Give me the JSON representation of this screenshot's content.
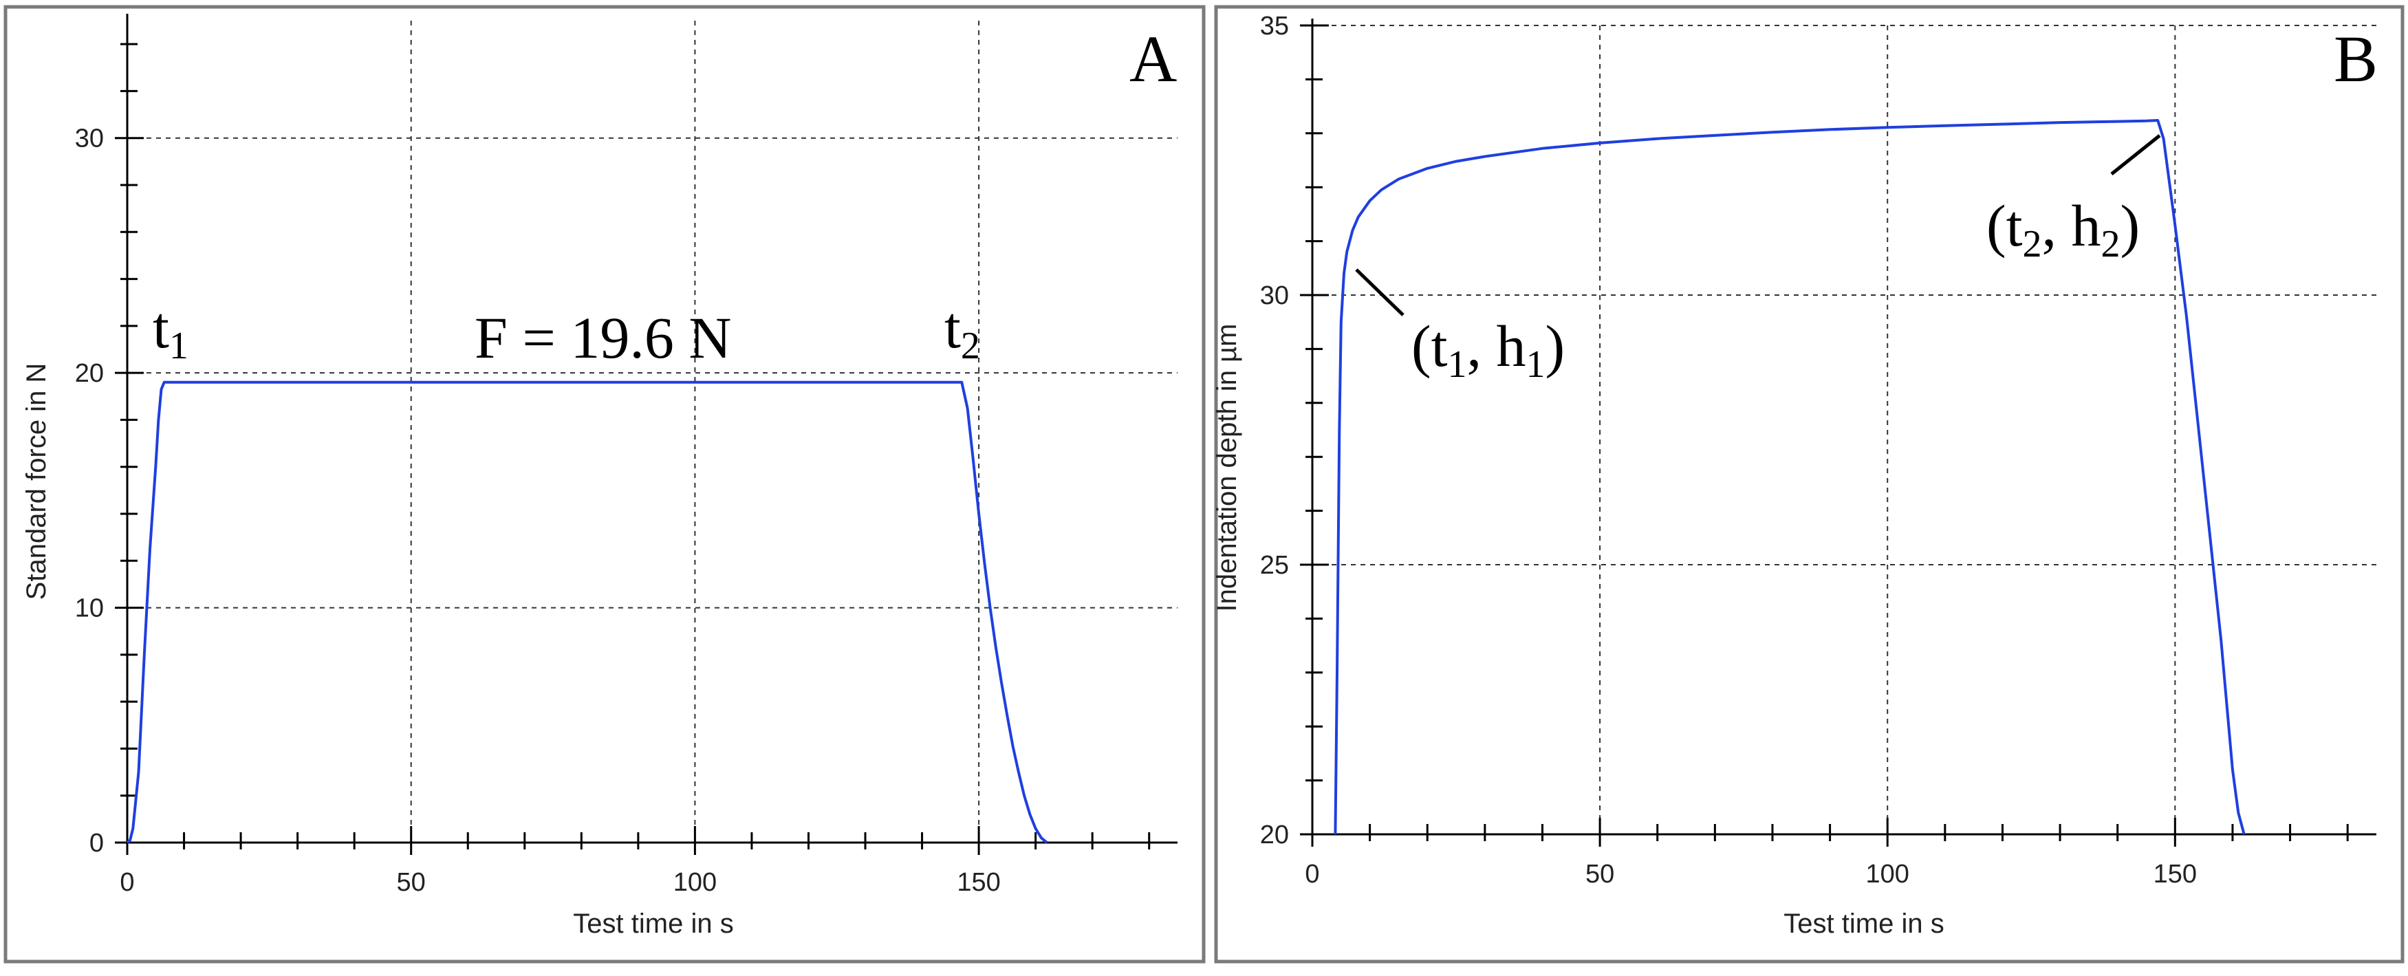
{
  "chart_data": [
    {
      "type": "line",
      "panel_label": "A",
      "xlabel": "Test time in s",
      "ylabel": "Standard force in N",
      "xlim": [
        0,
        185
      ],
      "ylim": [
        0,
        35
      ],
      "xticks": [
        0,
        50,
        100,
        150
      ],
      "yticks": [
        0,
        10,
        20,
        30
      ],
      "grid": true,
      "series": [
        {
          "color": "#1f3fe0",
          "x": [
            0,
            0.5,
            1,
            2,
            3,
            4,
            5,
            5.5,
            6,
            6.5,
            7,
            10,
            20,
            30,
            40,
            50,
            60,
            70,
            80,
            90,
            100,
            110,
            120,
            130,
            140,
            145,
            147,
            148,
            149,
            150,
            151,
            152,
            153,
            154,
            155,
            156,
            157,
            158,
            159,
            160,
            161,
            162
          ],
          "y": [
            0,
            0.1,
            0.6,
            3,
            8,
            12.5,
            16,
            18,
            19.3,
            19.6,
            19.6,
            19.6,
            19.6,
            19.6,
            19.6,
            19.6,
            19.6,
            19.6,
            19.6,
            19.6,
            19.6,
            19.6,
            19.6,
            19.6,
            19.6,
            19.6,
            19.6,
            18.5,
            16.3,
            14.0,
            11.9,
            10.0,
            8.3,
            6.8,
            5.4,
            4.1,
            3.0,
            2.0,
            1.2,
            0.6,
            0.2,
            0
          ]
        }
      ],
      "annotations": {
        "t1": {
          "main": "t",
          "sub": "1"
        },
        "t2": {
          "main": "t",
          "sub": "2"
        },
        "force": "F = 19.6 N"
      }
    },
    {
      "type": "line",
      "panel_label": "B",
      "xlabel": "Test time in s",
      "ylabel": "Indentation depth in µm",
      "xlim": [
        0,
        185
      ],
      "ylim": [
        20,
        35
      ],
      "xticks": [
        0,
        50,
        100,
        150
      ],
      "yticks": [
        20,
        25,
        30,
        35
      ],
      "grid": true,
      "series": [
        {
          "color": "#1f3fe0",
          "x": [
            4,
            4.3,
            4.7,
            5,
            5.5,
            6,
            7,
            8,
            10,
            12,
            15,
            20,
            25,
            30,
            40,
            50,
            60,
            70,
            80,
            90,
            100,
            110,
            120,
            130,
            140,
            145,
            147,
            148,
            150,
            152,
            154,
            156,
            158,
            160,
            161,
            162
          ],
          "y": [
            20,
            23,
            27.5,
            29.5,
            30.4,
            30.8,
            31.2,
            31.45,
            31.75,
            31.95,
            32.15,
            32.35,
            32.48,
            32.57,
            32.72,
            32.82,
            32.9,
            32.96,
            33.02,
            33.07,
            33.11,
            33.14,
            33.17,
            33.2,
            33.22,
            33.23,
            33.24,
            32.9,
            31.3,
            29.6,
            27.6,
            25.6,
            23.6,
            21.2,
            20.4,
            20
          ]
        }
      ],
      "annotations": {
        "p1": {
          "open": "(t",
          "sub1": "1",
          "mid": ", h",
          "sub2": "1",
          "close": ")"
        },
        "p2": {
          "open": "(t",
          "sub1": "2",
          "mid": ", h",
          "sub2": "2",
          "close": ")"
        }
      }
    }
  ]
}
